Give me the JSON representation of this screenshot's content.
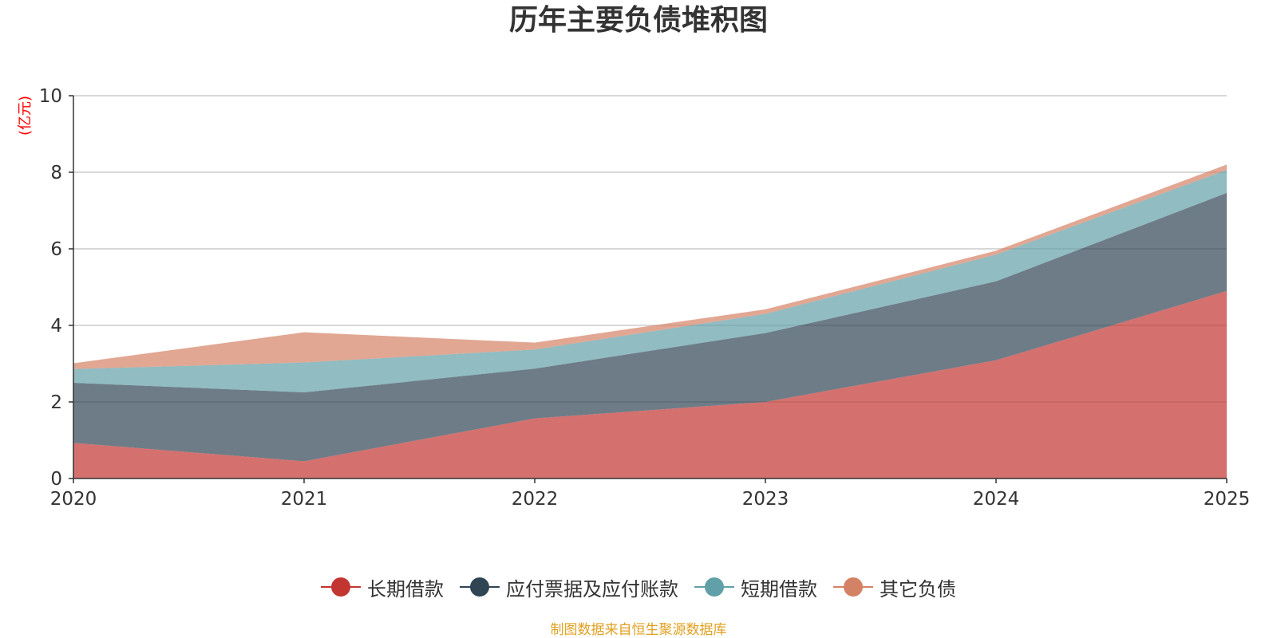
{
  "chart_data": {
    "type": "area",
    "stacked": true,
    "title": "历年主要负债堆积图",
    "ylabel": "(亿元)",
    "xlabel": "",
    "categories": [
      "2020",
      "2021",
      "2022",
      "2023",
      "2024",
      "2025"
    ],
    "ylim": [
      0,
      10
    ],
    "yticks": [
      0,
      2,
      4,
      6,
      8,
      10
    ],
    "grid": true,
    "legend_position": "bottom",
    "series": [
      {
        "name": "长期借款",
        "values": [
          0.93,
          0.45,
          1.57,
          2.0,
          3.09,
          4.9
        ],
        "color": "#c23531"
      },
      {
        "name": "应付票据及应付账款",
        "values": [
          1.57,
          1.8,
          1.3,
          1.8,
          2.06,
          2.56
        ],
        "color": "#2f4554"
      },
      {
        "name": "短期借款",
        "values": [
          0.36,
          0.78,
          0.5,
          0.5,
          0.7,
          0.6
        ],
        "color": "#61a0a8"
      },
      {
        "name": "其它负债",
        "values": [
          0.15,
          0.79,
          0.18,
          0.12,
          0.1,
          0.14
        ],
        "color": "#d48265"
      }
    ]
  },
  "footer": {
    "source_text": "制图数据来自恒生聚源数据库",
    "source_color": "#e0a020"
  },
  "axis": {
    "unit_color": "#ff0000"
  }
}
